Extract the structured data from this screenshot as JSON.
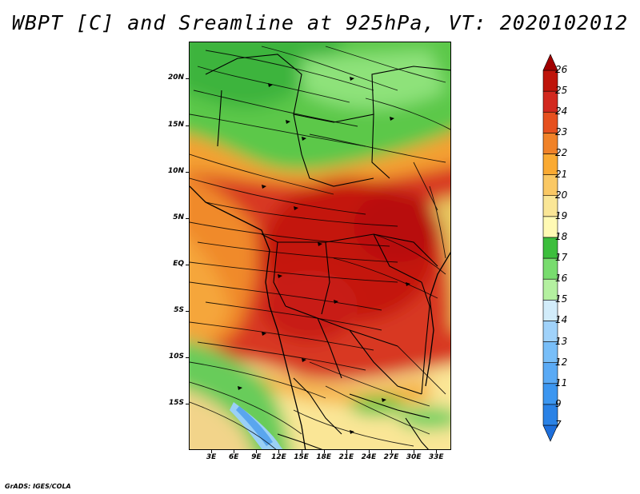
{
  "title": "WBPT [C] and Sreamline at 925hPa, VT: 2020102012",
  "credit": "GrADS: IGES/COLA",
  "map": {
    "lon_range": [
      0,
      35
    ],
    "lat_range": [
      -20,
      24
    ],
    "lat_ticks": [
      {
        "value": 20,
        "label": "20N"
      },
      {
        "value": 15,
        "label": "15N"
      },
      {
        "value": 10,
        "label": "10N"
      },
      {
        "value": 5,
        "label": "5N"
      },
      {
        "value": 0,
        "label": "EQ"
      },
      {
        "value": -5,
        "label": "5S"
      },
      {
        "value": -10,
        "label": "10S"
      },
      {
        "value": -15,
        "label": "15S"
      }
    ],
    "lon_ticks": [
      {
        "value": 3,
        "label": "3E"
      },
      {
        "value": 6,
        "label": "6E"
      },
      {
        "value": 9,
        "label": "9E"
      },
      {
        "value": 12,
        "label": "12E"
      },
      {
        "value": 15,
        "label": "15E"
      },
      {
        "value": 18,
        "label": "18E"
      },
      {
        "value": 21,
        "label": "21E"
      },
      {
        "value": 24,
        "label": "24E"
      },
      {
        "value": 27,
        "label": "27E"
      },
      {
        "value": 30,
        "label": "30E"
      },
      {
        "value": 33,
        "label": "33E"
      }
    ]
  },
  "colorbar": {
    "levels": [
      "7",
      "9",
      "11",
      "12",
      "13",
      "14",
      "15",
      "16",
      "17",
      "18",
      "19",
      "20",
      "21",
      "22",
      "23",
      "24",
      "25",
      "26"
    ],
    "colors": [
      "#1e6fdc",
      "#2a82e6",
      "#3c96f0",
      "#5aaaf5",
      "#78bef8",
      "#a0d2fa",
      "#d2ecfa",
      "#b4f0a0",
      "#78dc6e",
      "#3cbe3c",
      "#fffab4",
      "#fae696",
      "#fac864",
      "#faaa32",
      "#f08228",
      "#e6501e",
      "#d2281e",
      "#be140a",
      "#a00000"
    ]
  }
}
